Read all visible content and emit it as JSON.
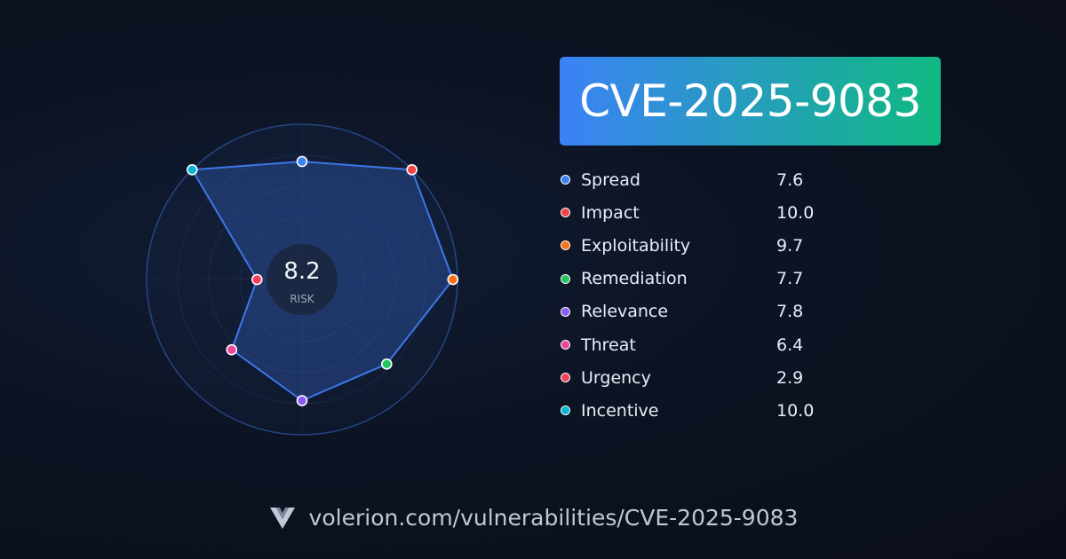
{
  "title": "CVE-2025-9083",
  "radar": {
    "center_value": "8.2",
    "center_label": "RISK",
    "max_value": 10
  },
  "metrics": [
    {
      "label": "Spread",
      "value": "7.6",
      "color": "#3b82f6"
    },
    {
      "label": "Impact",
      "value": "10.0",
      "color": "#ef4444"
    },
    {
      "label": "Exploitability",
      "value": "9.7",
      "color": "#f97316"
    },
    {
      "label": "Remediation",
      "value": "7.7",
      "color": "#22c55e"
    },
    {
      "label": "Relevance",
      "value": "7.8",
      "color": "#8b5cf6"
    },
    {
      "label": "Threat",
      "value": "6.4",
      "color": "#ec4899"
    },
    {
      "label": "Urgency",
      "value": "2.9",
      "color": "#f43f5e"
    },
    {
      "label": "Incentive",
      "value": "10.0",
      "color": "#06b6d4"
    }
  ],
  "footer": {
    "url": "volerion.com/vulnerabilities/CVE-2025-9083",
    "logo_icon": "volerion-logo-icon"
  }
}
